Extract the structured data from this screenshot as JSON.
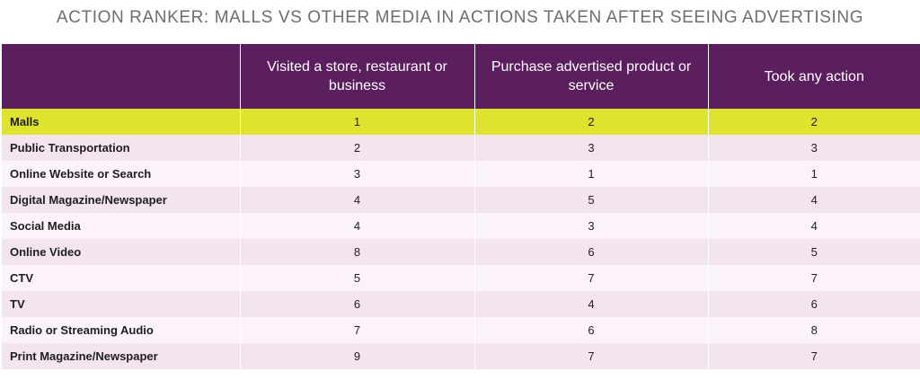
{
  "chart_data": {
    "type": "table",
    "title": "ACTION RANKER: MALLS VS OTHER MEDIA IN ACTIONS TAKEN AFTER SEEING ADVERTISING",
    "columns": [
      "",
      "Visited a store, restaurant or business",
      "Purchase advertised product or service",
      "Took any action"
    ],
    "rows": [
      {
        "label": "Malls",
        "values": [
          1,
          2,
          2
        ],
        "highlight": true
      },
      {
        "label": "Public Transportation",
        "values": [
          2,
          3,
          3
        ]
      },
      {
        "label": "Online Website or Search",
        "values": [
          3,
          1,
          1
        ]
      },
      {
        "label": "Digital Magazine/Newspaper",
        "values": [
          4,
          5,
          4
        ]
      },
      {
        "label": "Social Media",
        "values": [
          4,
          3,
          4
        ]
      },
      {
        "label": "Online Video",
        "values": [
          8,
          6,
          5
        ]
      },
      {
        "label": "CTV",
        "values": [
          5,
          7,
          7
        ]
      },
      {
        "label": "TV",
        "values": [
          6,
          4,
          6
        ]
      },
      {
        "label": "Radio or Streaming Audio",
        "values": [
          7,
          6,
          8
        ]
      },
      {
        "label": "Print Magazine/Newspaper",
        "values": [
          9,
          7,
          7
        ]
      }
    ],
    "colors": {
      "header_bg": "#5b1e5e",
      "header_text": "#ffffff",
      "highlight_row": "#dde32e",
      "row_light": "#fbf3f9",
      "row_dark": "#f3e4ef",
      "title_text": "#6e6e6e"
    }
  }
}
